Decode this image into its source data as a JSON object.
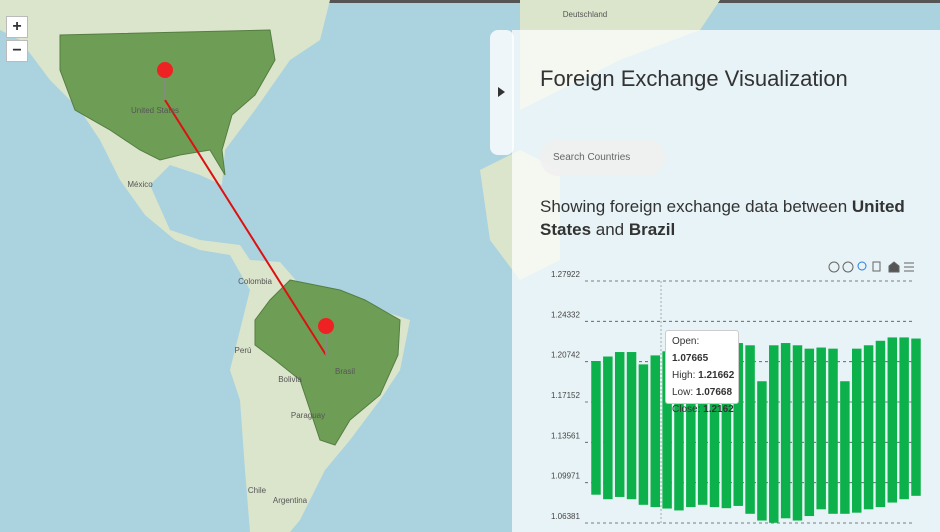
{
  "map": {
    "zoom_in": "+",
    "zoom_out": "−",
    "labels": [
      "Deutschland",
      "United States",
      "México",
      "Colombia",
      "Perú",
      "Bolivia",
      "Brasil",
      "Paraguay",
      "Chile",
      "Argentina"
    ]
  },
  "panel": {
    "title": "Foreign Exchange Visualization",
    "search_placeholder": "Search Countries",
    "subtitle": {
      "prefix": "Showing foreign exchange data between",
      "from": "United States",
      "joiner": "and",
      "to": "Brazil"
    }
  },
  "chart": {
    "type": "bar",
    "color": "#0db14b",
    "ylim": [
      1.06381,
      1.27922
    ],
    "yticks": [
      1.06381,
      1.09971,
      1.13561,
      1.17152,
      1.20742,
      1.24332,
      1.27922
    ],
    "high": [
      1.208,
      1.212,
      1.216,
      1.216,
      1.205,
      1.213,
      1.21662,
      1.213,
      1.216,
      1.216,
      1.213,
      1.221,
      1.224,
      1.222,
      1.19,
      1.222,
      1.224,
      1.222,
      1.219,
      1.22,
      1.219,
      1.19,
      1.219,
      1.222,
      1.226,
      1.229,
      1.229,
      1.228
    ],
    "low": [
      1.089,
      1.085,
      1.087,
      1.085,
      1.08,
      1.078,
      1.07668,
      1.075,
      1.078,
      1.08,
      1.078,
      1.077,
      1.079,
      1.072,
      1.066,
      1.064,
      1.068,
      1.066,
      1.07,
      1.076,
      1.072,
      1.072,
      1.073,
      1.076,
      1.078,
      1.082,
      1.085,
      1.088
    ],
    "tooltip": {
      "open_label": "Open:",
      "open": 1.07665,
      "high_label": "High:",
      "high": 1.21662,
      "low_label": "Low:",
      "low": 1.07668,
      "close_label": "Close:",
      "close": 1.2162
    }
  }
}
